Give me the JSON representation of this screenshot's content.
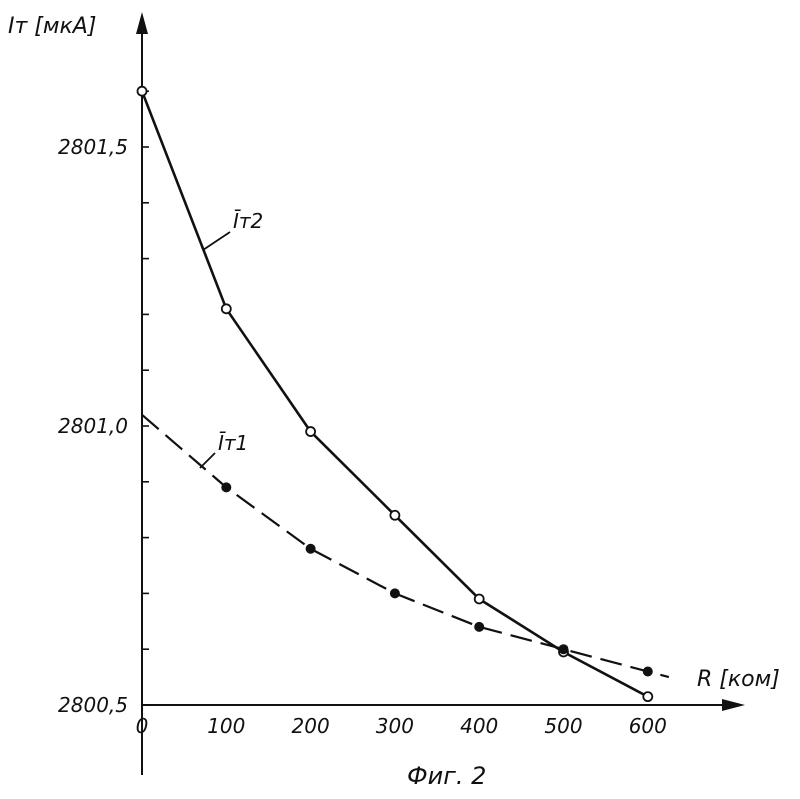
{
  "chart_data": {
    "type": "line",
    "ylabel": "Iт [мкА]",
    "xlabel": "R [ком]",
    "caption": "Фиг. 2",
    "x": [
      0,
      100,
      200,
      300,
      400,
      500,
      600
    ],
    "x_tick_labels": [
      "0",
      "100",
      "200",
      "300",
      "400",
      "500",
      "600"
    ],
    "y_tick_labels": [
      "2800,5",
      "2801,0",
      "2801,5"
    ],
    "y_ticks": [
      2800.5,
      2801.0,
      2801.5
    ],
    "xlim": [
      0,
      700
    ],
    "ylim": [
      2800.5,
      2801.6
    ],
    "grid": false,
    "legend": "none",
    "series": [
      {
        "name": "Īт2",
        "style": "solid",
        "marker": "open-circle",
        "values": [
          2801.6,
          2801.21,
          2800.99,
          2800.84,
          2800.69,
          2800.595,
          2800.515
        ]
      },
      {
        "name": "Īт1",
        "style": "dashed",
        "marker": "filled-circle",
        "values": [
          null,
          2800.89,
          2800.78,
          2800.7,
          2800.64,
          2800.6,
          2800.56
        ],
        "trend": [
          [
            0,
            2801.02
          ],
          [
            100,
            2800.89
          ],
          [
            200,
            2800.78
          ],
          [
            300,
            2800.7
          ],
          [
            400,
            2800.64
          ],
          [
            500,
            2800.6
          ],
          [
            625,
            2800.55
          ]
        ]
      }
    ]
  }
}
